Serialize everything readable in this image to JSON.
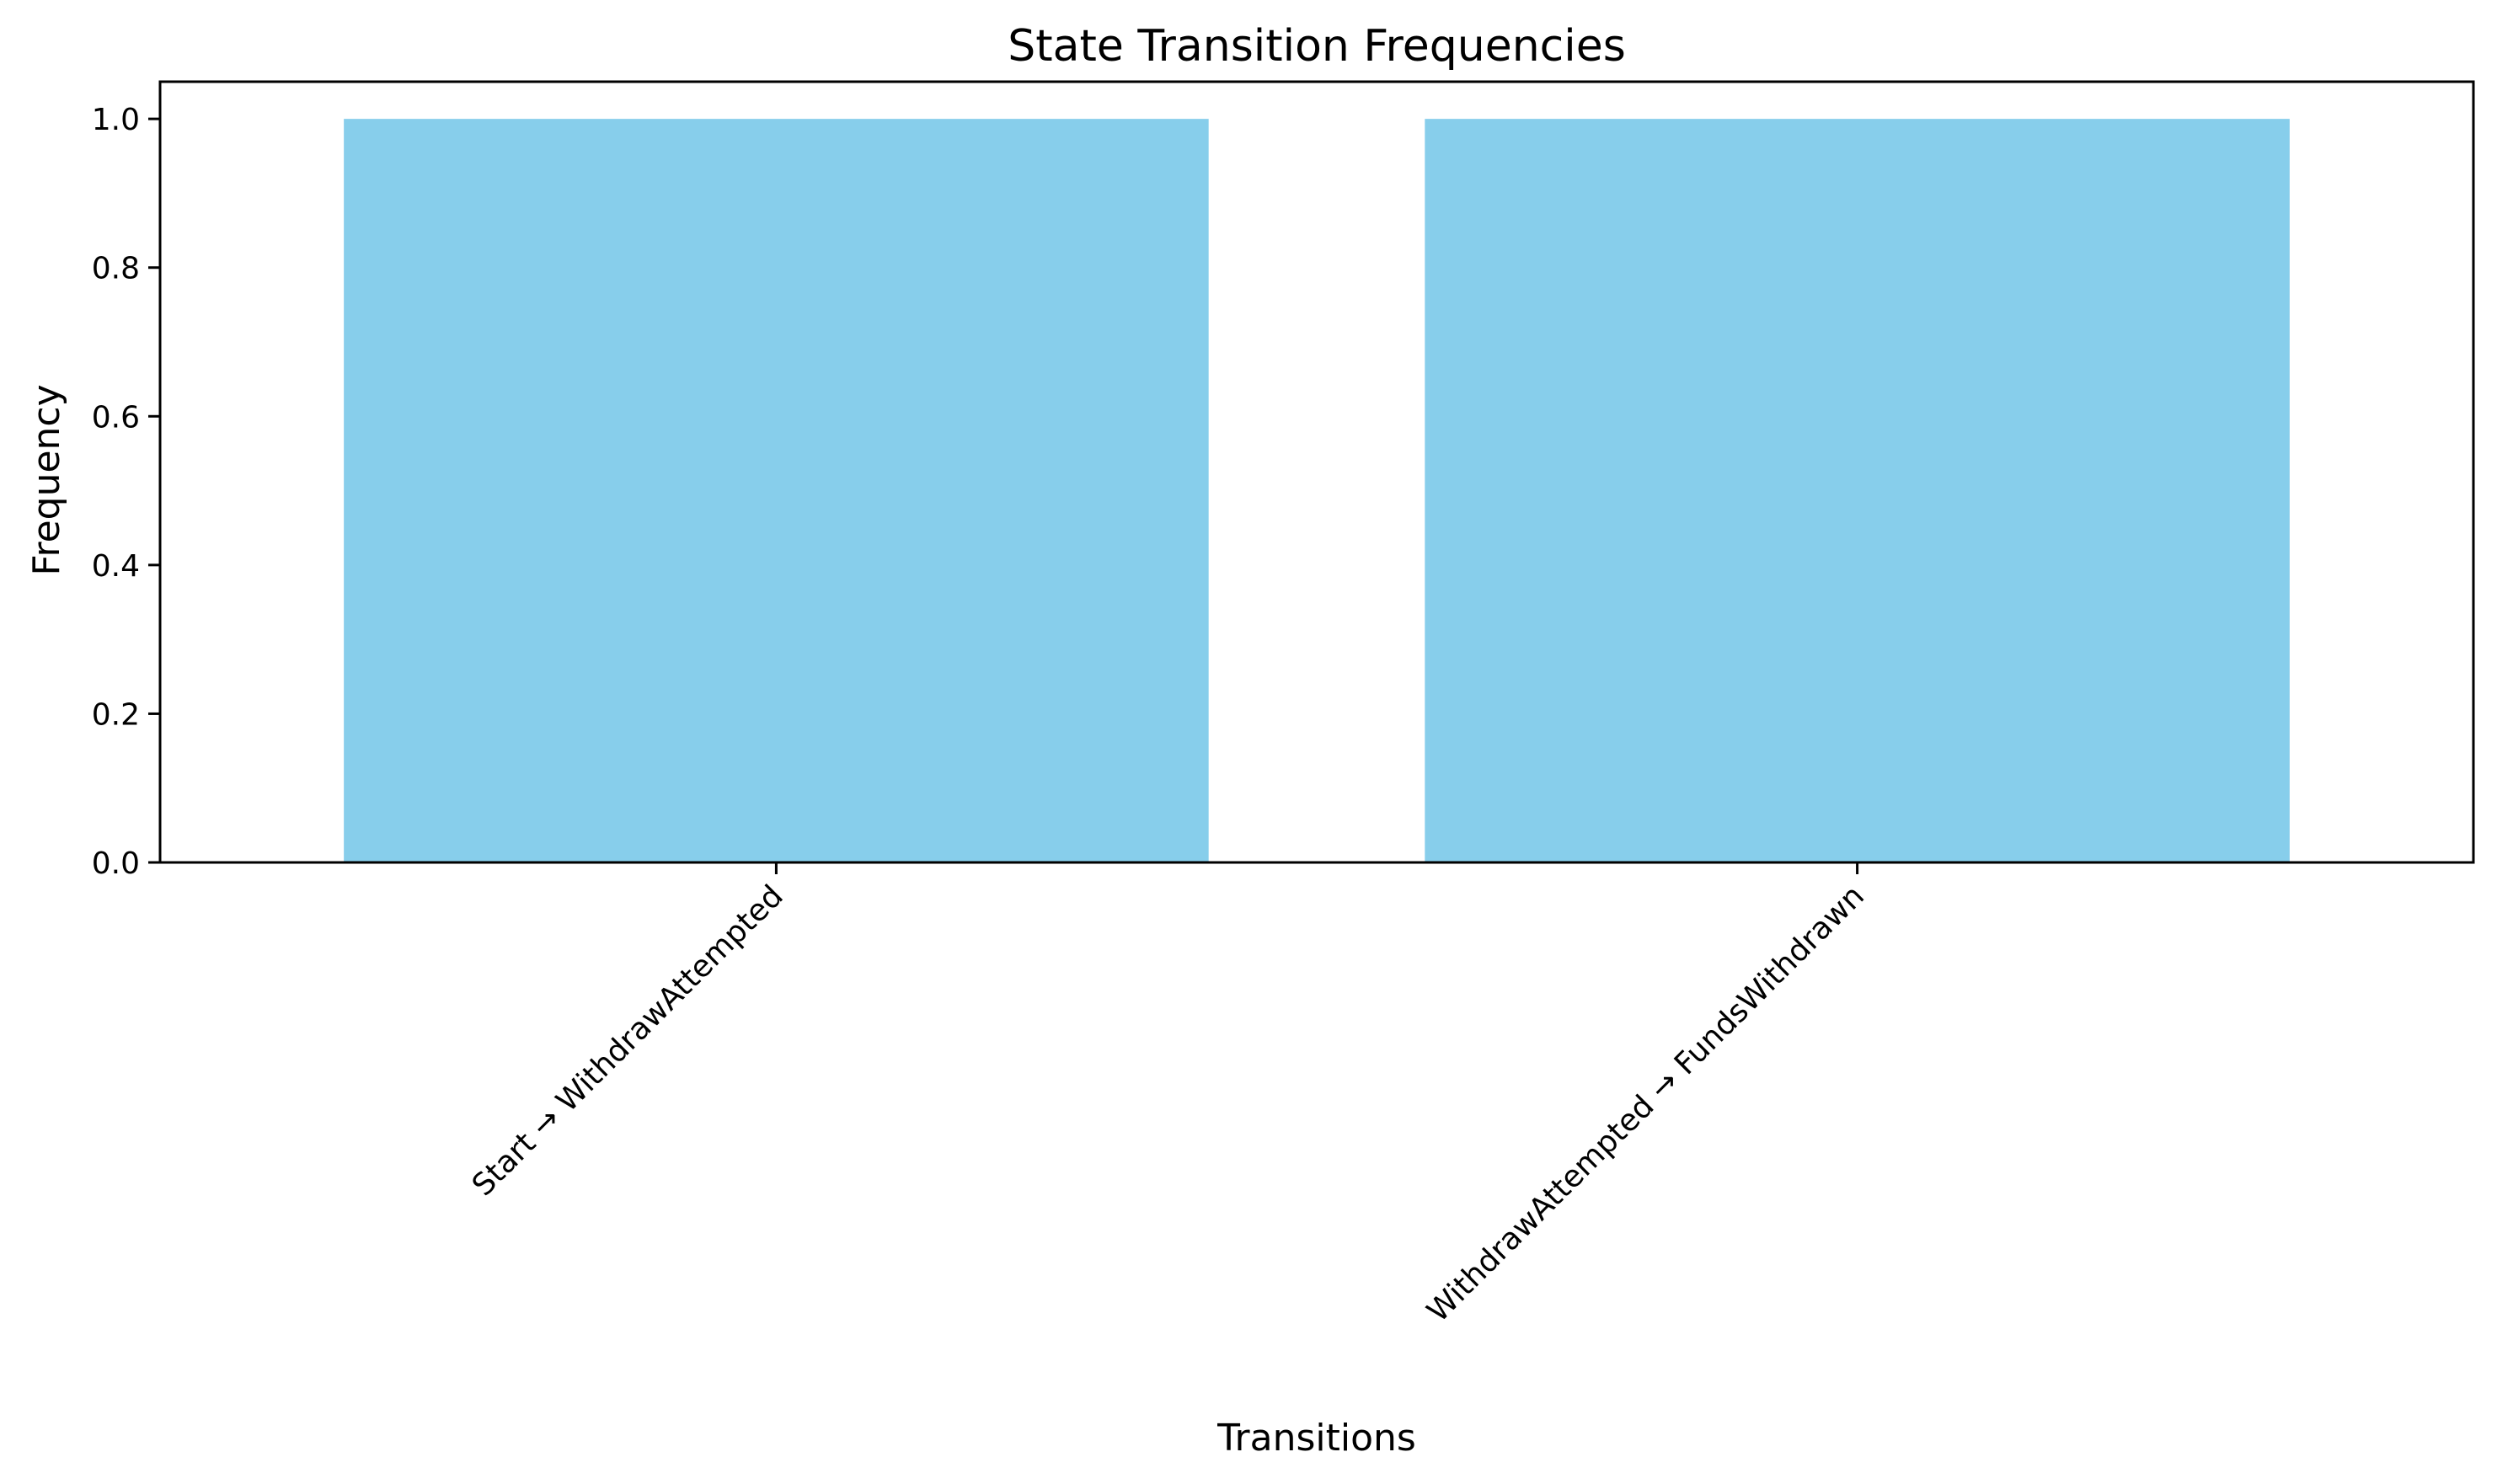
{
  "chart_data": {
    "type": "bar",
    "title": "State Transition Frequencies",
    "xlabel": "Transitions",
    "ylabel": "Frequency",
    "categories": [
      "Start → WithdrawAttempted",
      "WithdrawAttempted → FundsWithdrawn"
    ],
    "values": [
      1.0,
      1.0
    ],
    "ylim": [
      0,
      1.05
    ],
    "yticks": [
      "0.0",
      "0.2",
      "0.4",
      "0.6",
      "0.8",
      "1.0"
    ],
    "bar_color": "#87CEEB",
    "grid": false,
    "legend": false
  }
}
